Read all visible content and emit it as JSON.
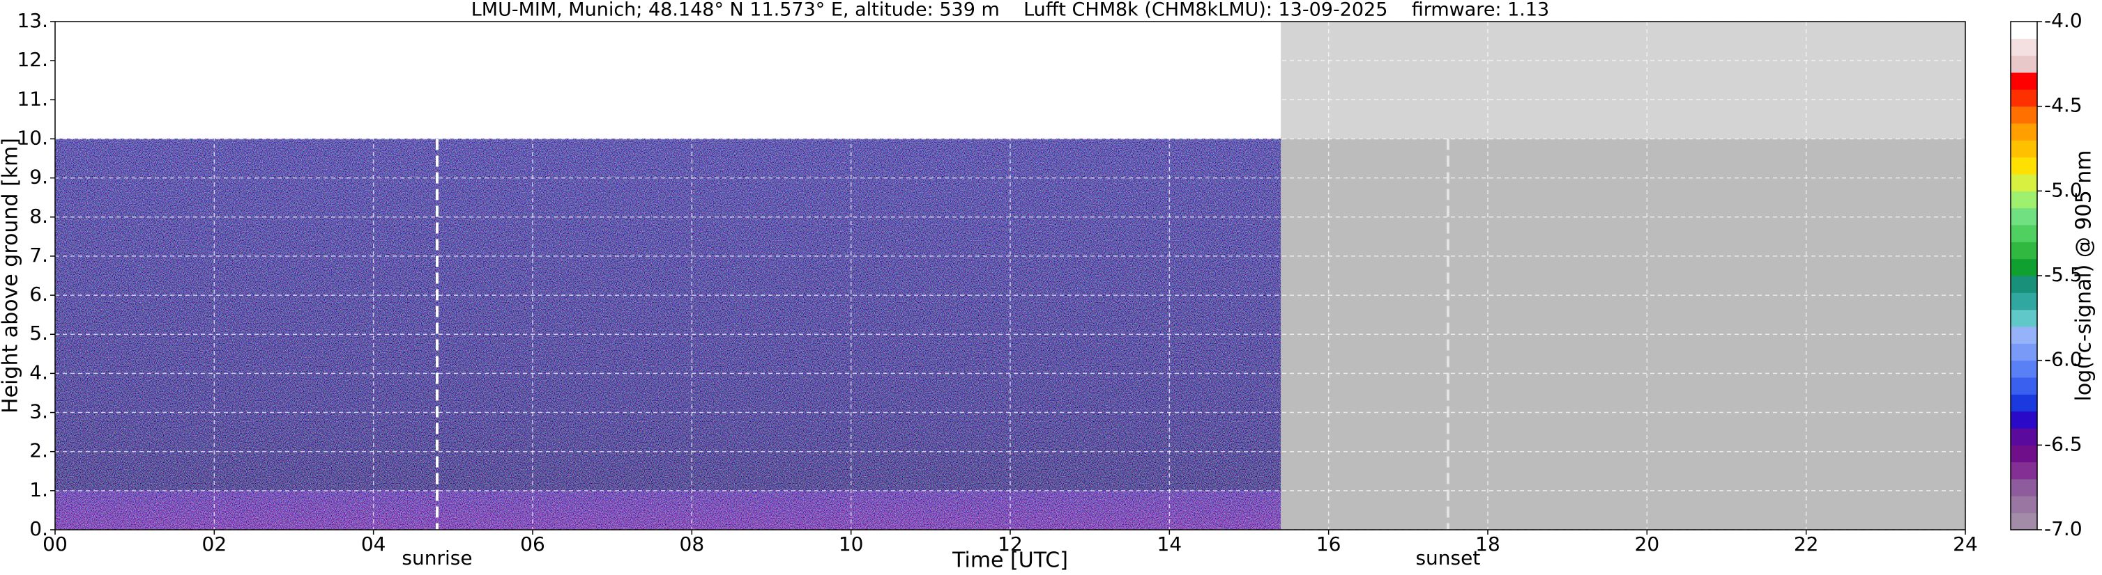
{
  "chart_data": {
    "type": "heatmap",
    "title": "LMU-MIM, Munich; 48.148° N 11.573° E, altitude: 539 m    Lufft CHM8k (CHM8kLMU): 13-09-2025    firmware: 1.13",
    "xlabel": "Time [UTC]",
    "ylabel": "Height above ground [km]",
    "xlim": [
      0,
      24
    ],
    "xticks": [
      {
        "value": 0,
        "label": "00"
      },
      {
        "value": 2,
        "label": "02"
      },
      {
        "value": 4,
        "label": "04"
      },
      {
        "value": 6,
        "label": "06"
      },
      {
        "value": 8,
        "label": "08"
      },
      10,
      12,
      14,
      16,
      18,
      20,
      22,
      24
    ],
    "ylim": [
      0,
      13
    ],
    "yticks": [
      {
        "value": 0,
        "label": "0."
      },
      {
        "value": 1,
        "label": "1."
      },
      {
        "value": 2,
        "label": "2."
      },
      {
        "value": 3,
        "label": "3."
      },
      {
        "value": 4,
        "label": "4."
      },
      {
        "value": 5,
        "label": "5."
      },
      {
        "value": 6,
        "label": "6."
      },
      {
        "value": 7,
        "label": "7."
      },
      {
        "value": 8,
        "label": "8."
      },
      {
        "value": 9,
        "label": "9."
      },
      {
        "value": 10,
        "label": "10."
      },
      {
        "value": 11,
        "label": "11."
      },
      {
        "value": 12,
        "label": "12."
      },
      {
        "value": 13,
        "label": "13."
      }
    ],
    "grid": true,
    "range_top": 10,
    "data_end": 15.4,
    "annotations": [
      {
        "label": "sunrise",
        "x": 4.8
      },
      {
        "label": "sunset",
        "x": 17.5
      }
    ],
    "colorbar": {
      "label": "log(rc-signal) @ 905 nm",
      "lim": [
        -7,
        -4
      ],
      "ticks": [
        {
          "value": -7,
          "label": "-7.0"
        },
        -6.5,
        {
          "value": -6,
          "label": "-6.0"
        },
        -5.5,
        {
          "value": -5,
          "label": "-5.0"
        },
        -4.5,
        {
          "value": -4,
          "label": "-4.0"
        }
      ],
      "colors": [
        "#a38ca8",
        "#9a77a3",
        "#8e5c9c",
        "#842f94",
        "#6f0f8a",
        "#5a0a9c",
        "#2a0ac8",
        "#1a3ae0",
        "#3a60f0",
        "#5a80f5",
        "#7a9af8",
        "#96b2f8",
        "#60c8c8",
        "#30a8a0",
        "#18907a",
        "#10a030",
        "#30b840",
        "#50d060",
        "#70e080",
        "#a0f070",
        "#d8f040",
        "#ffe000",
        "#ffc000",
        "#ffa000",
        "#ff7000",
        "#ff3000",
        "#ff0000",
        "#e8c8c8",
        "#f4e0e0",
        "#ffffff"
      ]
    }
  }
}
